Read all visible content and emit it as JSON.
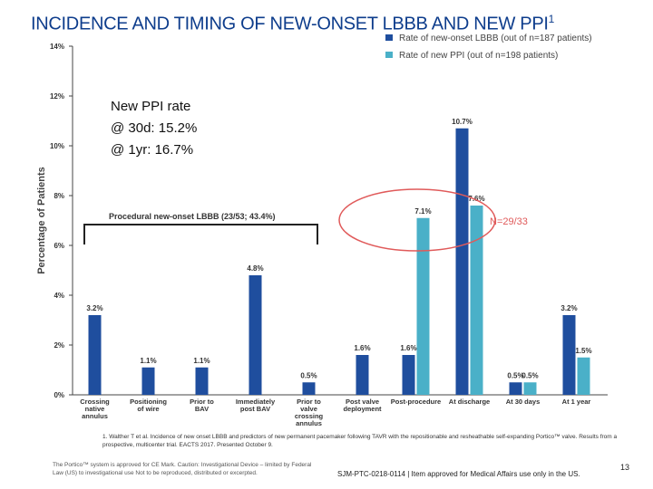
{
  "slide": {
    "title": "INCIDENCE AND TIMING OF NEW-ONSET LBBB AND NEW PPI",
    "title_sup": "1",
    "ppi_box": [
      "New PPI rate",
      "@ 30d: 15.2%",
      "@ 1yr: 16.7%"
    ],
    "procedural_label": "Procedural new-onset LBBB (23/53; 43.4%)",
    "n_label": "N=29/33",
    "footnote": "1. Walther T et al. Incidence of new onset LBBB and predictors of new permanent pacemaker following TAVR with the repositionable and resheathable self-expanding Portico™ valve. Results from a prospective, multicenter trial. EACTS 2017. Presented October 9.",
    "disclaimer": "The Portico™ system is approved for CE Mark. Caution: Investigational Device – limited by Federal Law (US) to investigational use Not to be reproduced, distributed or excerpted.",
    "code": "SJM-PTC-0218-0114 | Item approved for Medical Affairs use only in the US.",
    "page_number": "13"
  },
  "chart_data": {
    "type": "bar",
    "title": "",
    "ylabel": "Percentage of Patients",
    "xlabel": "",
    "ylim": [
      0,
      14
    ],
    "yticks": [
      "0%",
      "2%",
      "4%",
      "6%",
      "8%",
      "10%",
      "12%",
      "14%"
    ],
    "grid": false,
    "legend_position": "top-right",
    "categories": [
      [
        "Crossing",
        "native",
        "annulus"
      ],
      [
        "Positioning",
        "of wire"
      ],
      [
        "Prior to",
        "BAV"
      ],
      [
        "Immediately",
        "post BAV"
      ],
      [
        "Prior to",
        "valve",
        "crossing",
        "annulus"
      ],
      [
        "Post valve",
        "deployment"
      ],
      [
        "Post-procedure"
      ],
      [
        "At discharge"
      ],
      [
        "At 30 days"
      ],
      [
        "At 1 year"
      ]
    ],
    "series": [
      {
        "name": "Rate of new-onset LBBB (out of n=187 patients)",
        "color": "#1f4e9e",
        "values": [
          3.2,
          1.1,
          1.1,
          4.8,
          0.5,
          1.6,
          1.6,
          10.7,
          0.5,
          3.2
        ],
        "labels": [
          "3.2%",
          "1.1%",
          "1.1%",
          "4.8%",
          "0.5%",
          "1.6%",
          "1.6%",
          "10.7%",
          "0.5%",
          "3.2%"
        ]
      },
      {
        "name": "Rate of new PPI (out of n=198 patients)",
        "color": "#4ab0c8",
        "values": [
          null,
          null,
          null,
          null,
          null,
          null,
          7.1,
          7.6,
          0.5,
          1.5
        ],
        "labels": [
          null,
          null,
          null,
          null,
          null,
          null,
          "7.1%",
          "7.6%",
          "0.5%",
          "1.5%"
        ]
      }
    ]
  }
}
